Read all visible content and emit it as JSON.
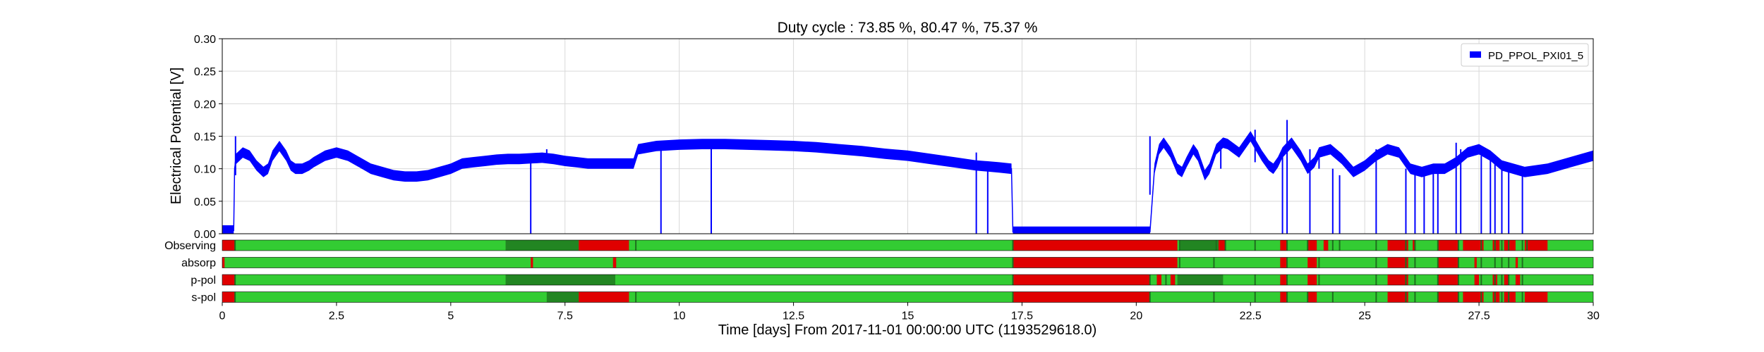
{
  "chart_data": {
    "type": "line",
    "title": "Duty cycle : 73.85 %, 80.47 %, 75.37 %",
    "xlabel": "Time [days] From 2017-11-01 00:00:00 UTC (1193529618.0)",
    "ylabel": "Electrical Potential [V]",
    "xlim": [
      0,
      30
    ],
    "ylim": [
      0,
      0.3
    ],
    "x_ticks": [
      0,
      2.5,
      5,
      7.5,
      10,
      12.5,
      15,
      17.5,
      20,
      22.5,
      25,
      27.5,
      30
    ],
    "x_tick_labels": [
      "0",
      "2.5",
      "5",
      "7.5",
      "10",
      "12.5",
      "15",
      "17.5",
      "20",
      "22.5",
      "25",
      "27.5",
      "30"
    ],
    "y_ticks": [
      0,
      0.05,
      0.1,
      0.15,
      0.2,
      0.25,
      0.3
    ],
    "y_tick_labels": [
      "0.00",
      "0.05",
      "0.10",
      "0.15",
      "0.20",
      "0.25",
      "0.30"
    ],
    "grid": true,
    "legend": {
      "position": "top-right"
    },
    "series": [
      {
        "name": "PD_PPOL_PXI01_5",
        "color": "#0000ff",
        "band": 0.008,
        "x": [
          0,
          0.25,
          0.27,
          0.3,
          0.45,
          0.6,
          0.75,
          0.9,
          1.0,
          1.1,
          1.25,
          1.4,
          1.5,
          1.6,
          1.75,
          1.9,
          2.0,
          2.25,
          2.5,
          2.75,
          3.0,
          3.25,
          3.5,
          3.75,
          4.0,
          4.25,
          4.5,
          4.75,
          5.0,
          5.25,
          5.5,
          5.75,
          6.0,
          6.25,
          6.5,
          6.75,
          7.0,
          7.25,
          7.5,
          7.75,
          8.0,
          8.25,
          8.5,
          8.75,
          9.0,
          9.1,
          9.5,
          10.0,
          10.5,
          11.0,
          11.5,
          12.0,
          12.5,
          13.0,
          13.5,
          14.0,
          14.5,
          15.0,
          15.5,
          16.0,
          16.5,
          17.0,
          17.27,
          17.3,
          18.0,
          19.0,
          20.0,
          20.3,
          20.4,
          20.5,
          20.6,
          20.75,
          20.9,
          21.0,
          21.1,
          21.25,
          21.35,
          21.5,
          21.6,
          21.75,
          21.9,
          22.0,
          22.25,
          22.5,
          22.75,
          22.9,
          23.0,
          23.1,
          23.2,
          23.4,
          23.6,
          23.75,
          23.9,
          24.0,
          24.25,
          24.5,
          24.75,
          25.0,
          25.25,
          25.5,
          25.75,
          26.0,
          26.25,
          26.5,
          26.75,
          27.0,
          27.25,
          27.5,
          27.75,
          28.0,
          28.5,
          29.0,
          29.5,
          30.0
        ],
        "y": [
          0.005,
          0.005,
          0.1,
          0.115,
          0.125,
          0.12,
          0.105,
          0.095,
          0.1,
          0.12,
          0.135,
          0.12,
          0.105,
          0.1,
          0.1,
          0.105,
          0.11,
          0.12,
          0.125,
          0.12,
          0.11,
          0.1,
          0.095,
          0.09,
          0.088,
          0.088,
          0.09,
          0.095,
          0.1,
          0.108,
          0.11,
          0.112,
          0.114,
          0.115,
          0.115,
          0.116,
          0.117,
          0.115,
          0.112,
          0.11,
          0.108,
          0.108,
          0.108,
          0.108,
          0.108,
          0.13,
          0.135,
          0.137,
          0.138,
          0.138,
          0.137,
          0.136,
          0.135,
          0.133,
          0.13,
          0.127,
          0.123,
          0.12,
          0.115,
          0.11,
          0.105,
          0.102,
          0.1,
          0.003,
          0.003,
          0.003,
          0.003,
          0.003,
          0.1,
          0.13,
          0.14,
          0.125,
          0.1,
          0.095,
          0.11,
          0.13,
          0.12,
          0.09,
          0.1,
          0.13,
          0.14,
          0.138,
          0.125,
          0.15,
          0.12,
          0.105,
          0.1,
          0.11,
          0.125,
          0.14,
          0.12,
          0.1,
          0.11,
          0.125,
          0.13,
          0.115,
          0.095,
          0.105,
          0.12,
          0.13,
          0.125,
          0.1,
          0.095,
          0.1,
          0.1,
          0.11,
          0.125,
          0.13,
          0.12,
          0.105,
          0.095,
          0.1,
          0.11,
          0.12
        ]
      }
    ],
    "spikes": [
      {
        "x": 0.29,
        "y_top": 0.15,
        "y_bottom": 0.09
      },
      {
        "x": 6.75,
        "y_top": 0.116,
        "y_bottom": 0.0
      },
      {
        "x": 7.1,
        "y_top": 0.13,
        "y_bottom": 0.11
      },
      {
        "x": 9.6,
        "y_top": 0.135,
        "y_bottom": 0.0
      },
      {
        "x": 10.7,
        "y_top": 0.138,
        "y_bottom": 0.0
      },
      {
        "x": 16.5,
        "y_top": 0.125,
        "y_bottom": 0.0
      },
      {
        "x": 16.75,
        "y_top": 0.105,
        "y_bottom": 0.0
      },
      {
        "x": 20.3,
        "y_top": 0.15,
        "y_bottom": 0.06
      },
      {
        "x": 21.85,
        "y_top": 0.14,
        "y_bottom": 0.1
      },
      {
        "x": 22.6,
        "y_top": 0.16,
        "y_bottom": 0.11
      },
      {
        "x": 23.2,
        "y_top": 0.13,
        "y_bottom": 0.0
      },
      {
        "x": 23.3,
        "y_top": 0.175,
        "y_bottom": 0.0
      },
      {
        "x": 23.8,
        "y_top": 0.13,
        "y_bottom": 0.0
      },
      {
        "x": 24.0,
        "y_top": 0.13,
        "y_bottom": 0.1
      },
      {
        "x": 24.3,
        "y_top": 0.1,
        "y_bottom": 0.0
      },
      {
        "x": 24.45,
        "y_top": 0.09,
        "y_bottom": 0.0
      },
      {
        "x": 25.25,
        "y_top": 0.13,
        "y_bottom": 0.0
      },
      {
        "x": 25.9,
        "y_top": 0.1,
        "y_bottom": 0.0
      },
      {
        "x": 26.1,
        "y_top": 0.1,
        "y_bottom": 0.0
      },
      {
        "x": 26.3,
        "y_top": 0.1,
        "y_bottom": 0.0
      },
      {
        "x": 26.5,
        "y_top": 0.1,
        "y_bottom": 0.0
      },
      {
        "x": 26.6,
        "y_top": 0.1,
        "y_bottom": 0.0
      },
      {
        "x": 27.0,
        "y_top": 0.14,
        "y_bottom": 0.0
      },
      {
        "x": 27.1,
        "y_top": 0.13,
        "y_bottom": 0.0
      },
      {
        "x": 27.55,
        "y_top": 0.12,
        "y_bottom": 0.0
      },
      {
        "x": 27.75,
        "y_top": 0.12,
        "y_bottom": 0.0
      },
      {
        "x": 27.85,
        "y_top": 0.11,
        "y_bottom": 0.0
      },
      {
        "x": 28.0,
        "y_top": 0.11,
        "y_bottom": 0.0
      },
      {
        "x": 28.15,
        "y_top": 0.1,
        "y_bottom": 0.0
      },
      {
        "x": 28.45,
        "y_top": 0.1,
        "y_bottom": 0.0
      }
    ],
    "segments": {
      "colors": {
        "active": "#33cc33",
        "inactive": "#e00000",
        "dense": "#1e6e1e"
      },
      "rows": [
        {
          "name": "Observing",
          "inactive": [
            [
              0,
              0.28
            ],
            [
              7.8,
              8.9
            ],
            [
              17.3,
              20.9
            ],
            [
              21.8,
              21.95
            ],
            [
              23.15,
              23.3
            ],
            [
              23.75,
              23.95
            ],
            [
              24.1,
              24.2
            ],
            [
              25.5,
              25.95
            ],
            [
              26.05,
              26.1
            ],
            [
              26.6,
              27.05
            ],
            [
              27.15,
              27.6
            ],
            [
              27.8,
              27.95
            ],
            [
              28.05,
              28.3
            ],
            [
              28.5,
              29.0
            ]
          ],
          "dense": [
            [
              6.2,
              7.8
            ],
            [
              8.1,
              8.3
            ],
            [
              20.95,
              21.8
            ]
          ],
          "ticks": [
            0.28,
            9.05,
            17.3,
            20.95,
            21.75,
            21.95,
            22.6,
            23.3,
            23.75,
            24.3,
            24.45,
            25.25,
            25.9,
            26.1,
            26.6,
            27.05,
            27.55,
            27.85,
            28.0,
            28.15,
            28.45,
            28.55
          ]
        },
        {
          "name": "absorp",
          "inactive": [
            [
              0,
              0.05
            ],
            [
              6.75,
              6.8
            ],
            [
              8.55,
              8.62
            ],
            [
              17.3,
              20.9
            ],
            [
              23.15,
              23.3
            ],
            [
              23.75,
              23.95
            ],
            [
              25.5,
              25.95
            ],
            [
              26.6,
              27.05
            ],
            [
              27.4,
              27.45
            ],
            [
              28.3,
              28.35
            ]
          ],
          "dense": [],
          "ticks": [
            17.3,
            20.95,
            21.7,
            23.3,
            24.0,
            25.25,
            25.9,
            26.1,
            26.6,
            27.05,
            27.55,
            27.85,
            28.0,
            28.15,
            28.45
          ]
        },
        {
          "name": "p-pol",
          "inactive": [
            [
              0,
              0.28
            ],
            [
              17.3,
              20.3
            ],
            [
              20.45,
              20.55
            ],
            [
              20.75,
              20.85
            ],
            [
              23.15,
              23.3
            ],
            [
              23.75,
              23.95
            ],
            [
              25.5,
              25.95
            ],
            [
              26.6,
              27.05
            ],
            [
              27.4,
              27.5
            ],
            [
              27.8,
              27.9
            ],
            [
              28.05,
              28.15
            ],
            [
              28.3,
              28.4
            ]
          ],
          "dense": [
            [
              6.2,
              8.6
            ],
            [
              20.9,
              21.9
            ]
          ],
          "ticks": [
            0.28,
            17.3,
            20.3,
            20.65,
            22.6,
            23.3,
            24.0,
            25.25,
            25.9,
            26.1,
            26.6,
            27.05,
            27.55,
            27.85,
            28.0,
            28.15,
            28.45
          ]
        },
        {
          "name": "s-pol",
          "inactive": [
            [
              0,
              0.28
            ],
            [
              7.8,
              8.9
            ],
            [
              17.3,
              20.3
            ],
            [
              23.15,
              23.3
            ],
            [
              23.75,
              23.95
            ],
            [
              25.5,
              25.95
            ],
            [
              26.6,
              27.05
            ],
            [
              27.15,
              27.6
            ],
            [
              27.8,
              27.95
            ],
            [
              28.05,
              28.3
            ],
            [
              28.5,
              29.0
            ]
          ],
          "dense": [
            [
              7.1,
              7.8
            ]
          ],
          "ticks": [
            0.28,
            9.05,
            17.3,
            20.3,
            21.7,
            22.6,
            23.3,
            23.75,
            24.3,
            25.25,
            25.9,
            26.1,
            26.6,
            27.05,
            27.55,
            27.85,
            28.0,
            28.15,
            28.45
          ]
        }
      ]
    }
  }
}
